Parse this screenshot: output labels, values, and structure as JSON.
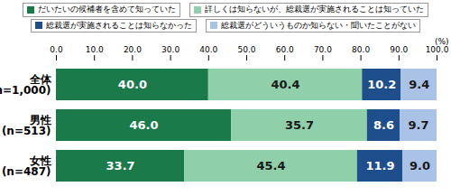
{
  "chart_data": {
    "type": "bar",
    "orientation": "horizontal",
    "stacked": true,
    "data_labels": true,
    "grid": false,
    "legend": "top",
    "categories": [
      "全体\n(n=1,000)",
      "男性\n(n=513)",
      "女性\n(n=487)"
    ],
    "xlim": [
      0,
      100
    ],
    "xticks": [
      {
        "value": 0,
        "label": "0.0"
      },
      {
        "value": 10,
        "label": "10.0"
      },
      {
        "value": 20,
        "label": "20.0"
      },
      {
        "value": 30,
        "label": "30.0"
      },
      {
        "value": 40,
        "label": "40.0"
      },
      {
        "value": 50,
        "label": "50.0"
      },
      {
        "value": 60,
        "label": "60.0"
      },
      {
        "value": 70,
        "label": "70.0"
      },
      {
        "value": 80,
        "label": "80.0"
      },
      {
        "value": 90,
        "label": "90.0"
      },
      {
        "value": 100,
        "label": "100.0"
      }
    ],
    "x_label": "(%)",
    "series": [
      {
        "name": "だいたいの候補者を含めて知っていた",
        "color": "#1b7a4a",
        "values": [
          40.0,
          46.0,
          33.7
        ],
        "value_labels": [
          "40.0",
          "46.0",
          "33.7"
        ]
      },
      {
        "name": "詳しくは知らないが、総裁選が実施されることは知っていた",
        "color": "#8fcfa9",
        "values": [
          40.4,
          35.7,
          45.4
        ],
        "value_labels": [
          "40.4",
          "35.7",
          "45.4"
        ]
      },
      {
        "name": "総裁選が実施されることは知らなかった",
        "color": "#1f4e8c",
        "values": [
          10.2,
          8.6,
          11.9
        ],
        "value_labels": [
          "10.2",
          "8.6",
          "11.9"
        ]
      },
      {
        "name": "総裁選がどういうものか知らない・聞いたことがない",
        "color": "#a9c2e6",
        "values": [
          9.4,
          9.7,
          9.0
        ],
        "value_labels": [
          "9.4",
          "9.7",
          "9.0"
        ]
      }
    ]
  }
}
